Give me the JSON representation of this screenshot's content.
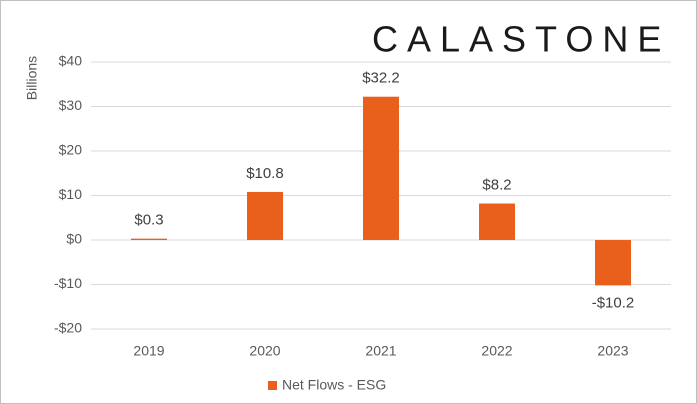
{
  "chart_data": {
    "type": "bar",
    "logo": "CALASTONE",
    "y_label": "Billions",
    "categories": [
      "2019",
      "2020",
      "2021",
      "2022",
      "2023"
    ],
    "series": [
      {
        "name": "Net Flows - ESG",
        "color": "#e8601c",
        "values": [
          0.3,
          10.8,
          32.2,
          8.2,
          -10.2
        ],
        "value_labels": [
          "$0.3",
          "$10.8",
          "$32.2",
          "$8.2",
          "-$10.2"
        ]
      }
    ],
    "ylim": [
      -20,
      40
    ],
    "yticks": [
      {
        "value": -20,
        "label": "-$20"
      },
      {
        "value": -10,
        "label": "-$10"
      },
      {
        "value": 0,
        "label": "$0"
      },
      {
        "value": 10,
        "label": "$10"
      },
      {
        "value": 20,
        "label": "$20"
      },
      {
        "value": 30,
        "label": "$30"
      },
      {
        "value": 40,
        "label": "$40"
      }
    ],
    "grid": true,
    "legend": "bottom"
  }
}
